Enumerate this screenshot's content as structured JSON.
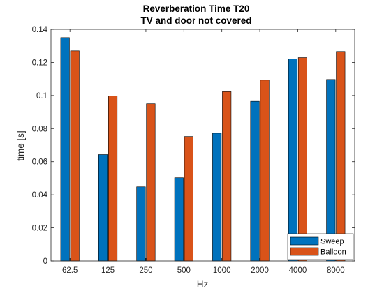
{
  "chart_data": {
    "type": "bar",
    "title": "Reverberation Time T20",
    "subtitle": "TV and door not covered",
    "xlabel": "Hz",
    "ylabel": "time [s]",
    "categories": [
      "62.5",
      "125",
      "250",
      "500",
      "1000",
      "2000",
      "4000",
      "8000"
    ],
    "ylim": [
      0,
      0.14
    ],
    "yticks": [
      "0",
      "0.02",
      "0.04",
      "0.06",
      "0.08",
      "0.1",
      "0.12",
      "0.14"
    ],
    "grid": false,
    "legend_position": "bottom-right",
    "series": [
      {
        "name": "Sweep",
        "color": "#0072BD",
        "values": [
          0.135,
          0.0643,
          0.0448,
          0.0503,
          0.0772,
          0.0965,
          0.1221,
          0.1097
        ]
      },
      {
        "name": "Balloon",
        "color": "#D95319",
        "values": [
          0.127,
          0.0997,
          0.095,
          0.0752,
          0.1023,
          0.1093,
          0.1229,
          0.1266
        ]
      }
    ]
  }
}
